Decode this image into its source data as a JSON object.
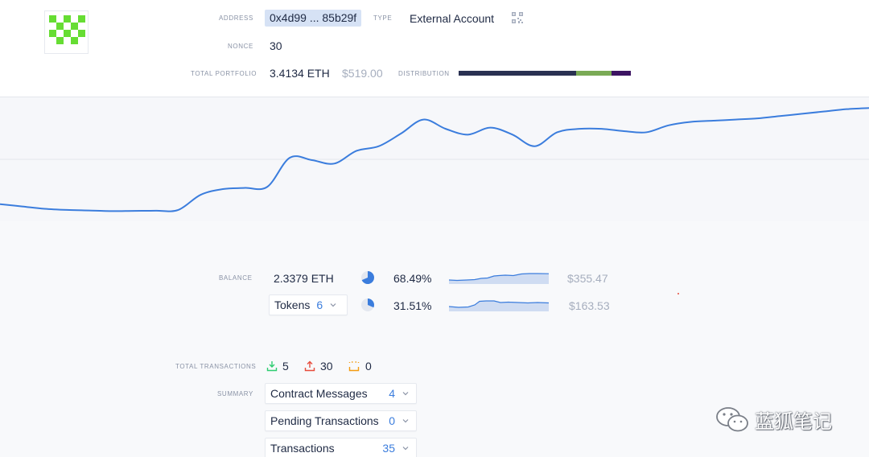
{
  "header": {
    "address_label": "ADDRESS",
    "address_value": "0x4d99 ... 85b29f",
    "type_label": "TYPE",
    "type_value": "External Account",
    "nonce_label": "NONCE",
    "nonce_value": "30",
    "portfolio_label": "TOTAL PORTFOLIO",
    "portfolio_eth": "3.4134 ETH",
    "portfolio_usd": "$519.00",
    "distribution_label": "DISTRIBUTION",
    "distribution": [
      {
        "share": 0.68,
        "color": "#2a3152"
      },
      {
        "share": 0.21,
        "color": "#7aaa55"
      },
      {
        "share": 0.11,
        "color": "#3c1462"
      }
    ]
  },
  "portfolio_chart": {
    "line_color": "#3b7ddd",
    "points": [
      0.12,
      0.1,
      0.08,
      0.07,
      0.065,
      0.06,
      0.062,
      0.063,
      0.07,
      0.2,
      0.25,
      0.26,
      0.27,
      0.52,
      0.5,
      0.47,
      0.58,
      0.62,
      0.73,
      0.85,
      0.77,
      0.72,
      0.78,
      0.72,
      0.62,
      0.74,
      0.77,
      0.77,
      0.75,
      0.74,
      0.8,
      0.83,
      0.84,
      0.85,
      0.86,
      0.88,
      0.9,
      0.92,
      0.94,
      0.95
    ]
  },
  "balance": {
    "label": "BALANCE",
    "eth_value": "2.3379 ETH",
    "eth_percent": "68.49%",
    "eth_share": 0.6849,
    "eth_usd": "$355.47",
    "tokens_label": "Tokens",
    "tokens_count": "6",
    "tokens_percent": "31.51%",
    "tokens_share": 0.3151,
    "tokens_usd": "$163.53"
  },
  "transactions": {
    "label": "TOTAL TRANSACTIONS",
    "incoming": "5",
    "outgoing": "30",
    "pending": "0",
    "summary_label": "SUMMARY",
    "summary_items": [
      {
        "label": "Contract Messages",
        "count": "4"
      },
      {
        "label": "Pending Transactions",
        "count": "0"
      },
      {
        "label": "Transactions",
        "count": "35"
      }
    ]
  },
  "watermark": "蓝狐笔记",
  "colors": {
    "accent": "#3b7ddd",
    "incoming": "#2ecc71",
    "outgoing": "#e74c3c",
    "pending": "#f39c12"
  }
}
